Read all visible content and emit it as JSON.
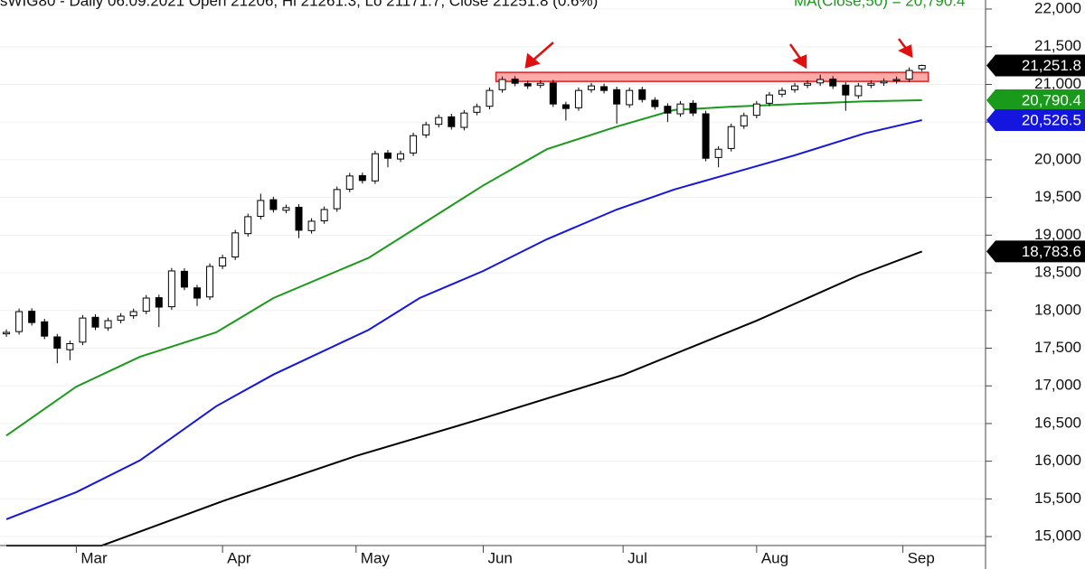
{
  "chart_data": {
    "type": "candlestick",
    "title": "sWIG80 - Daily 06.09.2021 Open 21206, Hi 21261.3, Lo 21171.7, Close 21251.8 (0.6%)",
    "xlim": [
      -1,
      154
    ],
    "ylim": [
      14570,
      22120
    ],
    "yticks": [
      {
        "value": 15000,
        "label": "15,000"
      },
      {
        "value": 15500,
        "label": "15,500"
      },
      {
        "value": 16000,
        "label": "16,000"
      },
      {
        "value": 16500,
        "label": "16,500"
      },
      {
        "value": 17000,
        "label": "17,000"
      },
      {
        "value": 17500,
        "label": "17,500"
      },
      {
        "value": 18000,
        "label": "18,000"
      },
      {
        "value": 18500,
        "label": "18,500"
      },
      {
        "value": 19000,
        "label": "19,000"
      },
      {
        "value": 19500,
        "label": "19,500"
      },
      {
        "value": 20000,
        "label": "20,000"
      },
      {
        "value": 20500,
        "label": "20,500"
      },
      {
        "value": 21000,
        "label": "21,000"
      },
      {
        "value": 21500,
        "label": "21,500"
      },
      {
        "value": 22000,
        "label": "22,000"
      }
    ],
    "xticks": [
      {
        "value": 11,
        "label": "Mar"
      },
      {
        "value": 34,
        "label": "Apr"
      },
      {
        "value": 55,
        "label": "May"
      },
      {
        "value": 75,
        "label": "Jun"
      },
      {
        "value": 97,
        "label": "Jul"
      },
      {
        "value": 118,
        "label": "Aug"
      },
      {
        "value": 141,
        "label": "Sep"
      }
    ],
    "candles": {
      "x": [
        0,
        2,
        4,
        6,
        8,
        10,
        12,
        14,
        16,
        18,
        20,
        22,
        24,
        26,
        28,
        30,
        32,
        34,
        36,
        38,
        40,
        42,
        44,
        46,
        48,
        50,
        52,
        54,
        56,
        58,
        60,
        62,
        64,
        66,
        68,
        70,
        72,
        74,
        76,
        78,
        80,
        82,
        84,
        86,
        88,
        90,
        92,
        94,
        96,
        98,
        100,
        102,
        104,
        106,
        108,
        110,
        112,
        114,
        116,
        118,
        120,
        122,
        124,
        126,
        128,
        130,
        132,
        134,
        136,
        138,
        140,
        142,
        144
      ],
      "open": [
        17690,
        17720,
        17990,
        17850,
        17650,
        17480,
        17580,
        17910,
        17770,
        17870,
        17930,
        17990,
        18170,
        18050,
        18520,
        18300,
        18180,
        18590,
        18710,
        19020,
        19250,
        19470,
        19330,
        19370,
        19060,
        19190,
        19350,
        19610,
        19790,
        19720,
        20090,
        20010,
        20090,
        20330,
        20470,
        20570,
        20430,
        20630,
        20710,
        20930,
        21070,
        21010,
        20990,
        21020,
        20730,
        20690,
        20930,
        20970,
        20930,
        20730,
        20930,
        20790,
        20710,
        20610,
        20750,
        20610,
        20030,
        20150,
        20450,
        20590,
        20750,
        20870,
        20930,
        20990,
        21020,
        21070,
        20990,
        20850,
        20990,
        21020,
        21050,
        21070,
        21206
      ],
      "high": [
        17750,
        18025,
        18030,
        17890,
        17690,
        17600,
        17940,
        17950,
        17905,
        17965,
        18025,
        18205,
        18210,
        18565,
        18560,
        18340,
        18625,
        18740,
        19070,
        19285,
        19550,
        19510,
        19405,
        19410,
        19225,
        19380,
        19645,
        19825,
        19830,
        20120,
        20130,
        20120,
        20360,
        20505,
        20600,
        20610,
        20660,
        20745,
        20960,
        21105,
        21110,
        21050,
        21055,
        21060,
        20770,
        20960,
        21020,
        21010,
        20970,
        20960,
        20970,
        20830,
        20750,
        20780,
        20790,
        20650,
        20180,
        20480,
        20625,
        20780,
        20900,
        20960,
        21020,
        21055,
        21130,
        21110,
        21030,
        21020,
        21055,
        21080,
        21105,
        21225,
        21261.3
      ],
      "low": [
        17650,
        17680,
        17800,
        17620,
        17300,
        17340,
        17540,
        17740,
        17730,
        17830,
        17890,
        17950,
        17780,
        18010,
        18270,
        18060,
        18140,
        18550,
        18670,
        18980,
        19210,
        19300,
        19290,
        18960,
        19020,
        19150,
        19310,
        19570,
        19685,
        19680,
        19900,
        19970,
        20050,
        20290,
        20430,
        20400,
        20390,
        20590,
        20670,
        20890,
        20975,
        20940,
        20950,
        20700,
        20520,
        20650,
        20890,
        20880,
        20480,
        20690,
        20760,
        20665,
        20500,
        20570,
        20580,
        19980,
        19900,
        20110,
        20410,
        20550,
        20710,
        20830,
        20890,
        20950,
        20980,
        20940,
        20650,
        20810,
        20950,
        20980,
        21010,
        21030,
        21171.7
      ],
      "close": [
        17710,
        17985,
        17840,
        17660,
        17500,
        17560,
        17900,
        17780,
        17865,
        17925,
        17985,
        18165,
        18045,
        18525,
        18310,
        18165,
        18585,
        18700,
        19030,
        19245,
        19460,
        19340,
        19365,
        19065,
        19185,
        19340,
        19605,
        19785,
        19725,
        20080,
        20020,
        20080,
        20320,
        20465,
        20560,
        20440,
        20620,
        20705,
        20920,
        21065,
        21015,
        20980,
        21015,
        20740,
        20680,
        20920,
        20980,
        20920,
        20740,
        20920,
        20800,
        20705,
        20620,
        20740,
        20620,
        20020,
        20140,
        20440,
        20585,
        20740,
        20860,
        20920,
        20980,
        21015,
        21065,
        20980,
        20860,
        20980,
        21015,
        21040,
        21065,
        21185,
        21251.8
      ]
    },
    "series": [
      {
        "name": "MA(Close,50) = 20,790.4",
        "color": "#1a9a1a",
        "x": [
          0,
          11,
          21,
          33,
          42,
          57,
          65,
          75,
          85,
          96,
          105,
          114,
          124,
          135,
          144
        ],
        "values": [
          16340,
          16990,
          17385,
          17710,
          18165,
          18700,
          19125,
          19660,
          20140,
          20440,
          20660,
          20705,
          20740,
          20775,
          20790.4
        ]
      },
      {
        "color": "#1515e0",
        "x": [
          0,
          11,
          21,
          33,
          42,
          57,
          65,
          75,
          85,
          96,
          105,
          114,
          124,
          135,
          144
        ],
        "values": [
          15230,
          15590,
          16010,
          16730,
          17150,
          17745,
          18165,
          18525,
          18945,
          19340,
          19605,
          19820,
          20060,
          20350,
          20526.5
        ]
      },
      {
        "color": "#000000",
        "x": [
          0,
          15,
          34,
          55,
          75,
          97,
          118,
          134,
          144
        ],
        "values": [
          14880,
          14880,
          15470,
          16070,
          16570,
          17145,
          17865,
          18465,
          18783.6
        ]
      }
    ],
    "price_tags": [
      {
        "value": 21251.8,
        "label": "21,251.8",
        "color": "#000000"
      },
      {
        "value": 20790.4,
        "label": "20,790.4",
        "color": "#1a9a1a"
      },
      {
        "value": 20526.5,
        "label": "20,526.5",
        "color": "#1515e0"
      },
      {
        "value": 18783.6,
        "label": "18,783.6",
        "color": "#000000"
      }
    ],
    "resistance_zone": {
      "x": [
        77,
        145
      ],
      "y": [
        21040,
        21160
      ],
      "color": "#ff9a9a"
    }
  }
}
